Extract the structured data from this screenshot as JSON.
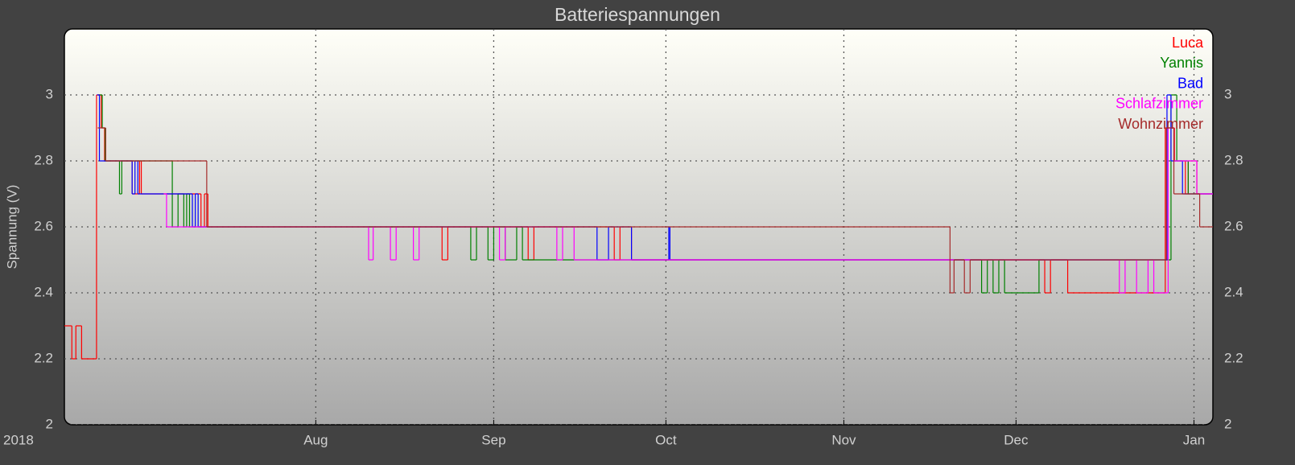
{
  "chart_data": {
    "type": "step",
    "title": "Batteriespannungen",
    "y_label": "Spannung (V)",
    "x_year_label": "2018",
    "xlim": [
      169.2,
      369.3
    ],
    "xticks": [
      {
        "value": 213,
        "label": "Aug"
      },
      {
        "value": 244,
        "label": "Sep"
      },
      {
        "value": 274,
        "label": "Oct"
      },
      {
        "value": 305,
        "label": "Nov"
      },
      {
        "value": 335,
        "label": "Dec"
      },
      {
        "value": 366,
        "label": "Jan"
      }
    ],
    "ylim": [
      2,
      3.2
    ],
    "yticks": [
      2,
      2.2,
      2.4,
      2.6,
      2.8,
      3
    ],
    "grid": true,
    "legend": "top-right",
    "series": [
      {
        "name": "Luca",
        "color": "#ff0000",
        "x": [
          169.2,
          170.5,
          171.2,
          172.2,
          174.8,
          175.6,
          176.2,
          181,
          182.3,
          182.6,
          193,
          193.6,
          194.2,
          235,
          236,
          250,
          251,
          265,
          266,
          268,
          340,
          341,
          344,
          361,
          362.6,
          364.5,
          365,
          366.5
        ],
        "values": [
          2.3,
          2.2,
          2.3,
          2.2,
          3.0,
          2.9,
          2.8,
          2.7,
          2.8,
          2.7,
          2.6,
          2.7,
          2.6,
          2.5,
          2.6,
          2.5,
          2.6,
          2.5,
          2.6,
          2.5,
          2.4,
          2.5,
          2.4,
          2.9,
          2.8,
          2.7,
          2.8,
          2.7
        ]
      },
      {
        "name": "Yannis",
        "color": "#008000",
        "x": [
          175.2,
          175.8,
          176.3,
          178.8,
          179.2,
          188,
          189,
          190,
          190.5,
          191,
          240,
          241,
          243,
          244,
          246,
          248,
          249,
          329,
          330,
          331,
          332,
          333,
          339,
          362,
          363,
          365
        ],
        "values": [
          3.0,
          2.9,
          2.8,
          2.7,
          2.8,
          2.6,
          2.7,
          2.6,
          2.7,
          2.6,
          2.5,
          2.6,
          2.5,
          2.6,
          2.5,
          2.6,
          2.5,
          2.4,
          2.5,
          2.4,
          2.5,
          2.4,
          2.5,
          3.0,
          2.8,
          2.7
        ]
      },
      {
        "name": "Bad",
        "color": "#0000ff",
        "x": [
          174.9,
          175.3,
          181,
          181.5,
          182,
          191.5,
          192,
          192.5,
          262,
          264,
          268,
          274.5,
          274.7,
          361.3,
          362,
          364
        ],
        "values": [
          3.0,
          2.8,
          2.7,
          2.8,
          2.7,
          2.6,
          2.7,
          2.6,
          2.5,
          2.6,
          2.5,
          2.6,
          2.5,
          3.0,
          2.8,
          2.7
        ]
      },
      {
        "name": "Schlafzimmer",
        "color": "#ff00ff",
        "x": [
          186.5,
          187,
          222.2,
          223,
          226,
          227,
          230,
          231,
          245,
          246,
          255,
          256,
          258,
          353,
          354,
          356,
          358,
          359,
          361.5,
          362.5,
          366.5
        ],
        "values": [
          2.7,
          2.6,
          2.5,
          2.6,
          2.5,
          2.6,
          2.5,
          2.6,
          2.5,
          2.6,
          2.5,
          2.6,
          2.5,
          2.4,
          2.5,
          2.4,
          2.5,
          2.4,
          2.9,
          2.8,
          2.7
        ]
      },
      {
        "name": "Wohnzimmer",
        "color": "#a52a2a",
        "x": [
          175,
          176.4,
          194,
          323.5,
          324.2,
          326,
          327,
          359,
          361.2,
          362.5,
          367
        ],
        "values": [
          2.9,
          2.8,
          2.6,
          2.4,
          2.5,
          2.4,
          2.5,
          2.5,
          2.9,
          2.7,
          2.6
        ]
      }
    ]
  }
}
